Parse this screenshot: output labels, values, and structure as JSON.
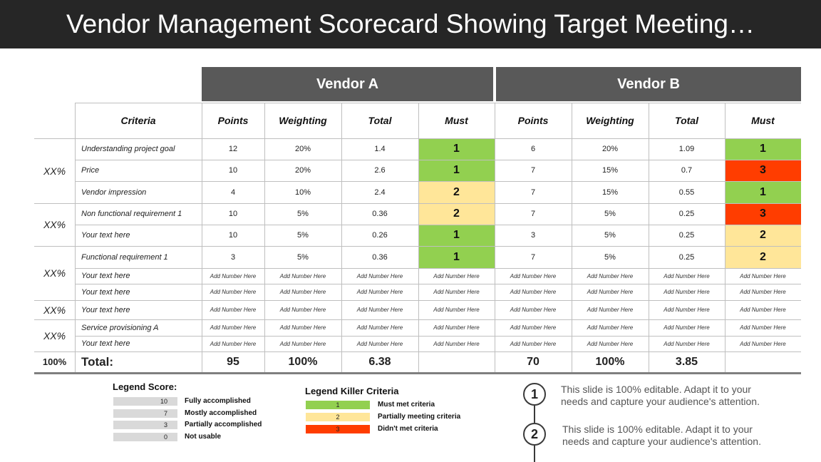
{
  "title": "Vendor Management Scorecard Showing Target Meeting…",
  "vendors": [
    "Vendor A",
    "Vendor B"
  ],
  "columns": [
    "Criteria",
    "Points",
    "Weighting",
    "Total",
    "Must"
  ],
  "colors": {
    "green": "#92d050",
    "yellow": "#ffe699",
    "red": "#ff3d00",
    "grey_bar": "#d9d9d9",
    "dark_header": "#595959"
  },
  "groups": [
    "XX%",
    "XX%",
    "XX%",
    "XX%",
    "XX%"
  ],
  "rows": [
    {
      "criteria": "Understanding project goal",
      "a": [
        "12",
        "20%",
        "1.4",
        "1"
      ],
      "a_color": "green",
      "b": [
        "6",
        "20%",
        "1.09",
        "1"
      ],
      "b_color": "green"
    },
    {
      "criteria": "Price",
      "a": [
        "10",
        "20%",
        "2.6",
        "1"
      ],
      "a_color": "green",
      "b": [
        "7",
        "15%",
        "0.7",
        "3"
      ],
      "b_color": "red"
    },
    {
      "criteria": "Vendor impression",
      "a": [
        "4",
        "10%",
        "2.4",
        "2"
      ],
      "a_color": "yellow",
      "b": [
        "7",
        "15%",
        "0.55",
        "1"
      ],
      "b_color": "green"
    },
    {
      "criteria": "Non functional requirement 1",
      "a": [
        "10",
        "5%",
        "0.36",
        "2"
      ],
      "a_color": "yellow",
      "b": [
        "7",
        "5%",
        "0.25",
        "3"
      ],
      "b_color": "red"
    },
    {
      "criteria": "Your text here",
      "a": [
        "10",
        "5%",
        "0.26",
        "1"
      ],
      "a_color": "green",
      "b": [
        "3",
        "5%",
        "0.25",
        "2"
      ],
      "b_color": "yellow"
    },
    {
      "criteria": "Functional requirement 1",
      "a": [
        "3",
        "5%",
        "0.36",
        "1"
      ],
      "a_color": "green",
      "b": [
        "7",
        "5%",
        "0.25",
        "2"
      ],
      "b_color": "yellow"
    },
    {
      "criteria": "Your text here",
      "placeholder": true
    },
    {
      "criteria": "Your text here",
      "placeholder": true
    },
    {
      "criteria": "Your text here",
      "placeholder": true
    },
    {
      "criteria": "Service provisioning A",
      "placeholder": true
    },
    {
      "criteria": "Your text here",
      "placeholder": true
    }
  ],
  "placeholder_text": "Add Number  Here",
  "total_row": {
    "pct": "100%",
    "label": "Total:",
    "a": [
      "95",
      "100%",
      "6.38",
      ""
    ],
    "b": [
      "70",
      "100%",
      "3.85",
      ""
    ]
  },
  "legend_score": {
    "title": "Legend Score:",
    "items": [
      {
        "value": "10",
        "label": "Fully accomplished"
      },
      {
        "value": "7",
        "label": "Mostly accomplished"
      },
      {
        "value": "3",
        "label": "Partially accomplished"
      },
      {
        "value": "0",
        "label": "Not usable"
      }
    ]
  },
  "legend_killer": {
    "title": "Legend Killer Criteria",
    "items": [
      {
        "value": "1",
        "label": "Must met criteria",
        "color": "green"
      },
      {
        "value": "2",
        "label": "Partially meeting criteria",
        "color": "yellow"
      },
      {
        "value": "3",
        "label": "Didn't met criteria",
        "color": "red"
      }
    ]
  },
  "notes": [
    {
      "num": "1",
      "text": "This slide is 100% editable. Adapt it to your needs and capture your audience's attention."
    },
    {
      "num": "2",
      "text": "This slide is 100% editable. Adapt it to your needs and capture your audience's attention."
    }
  ]
}
